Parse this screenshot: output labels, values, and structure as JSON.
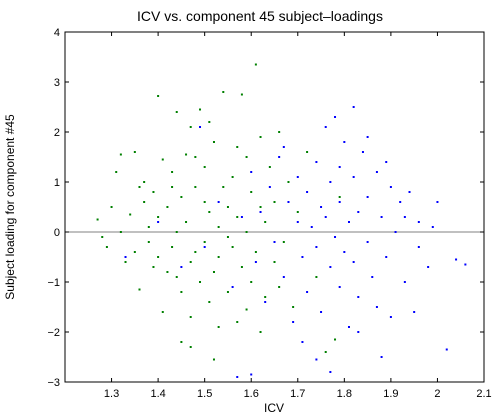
{
  "chart_data": {
    "type": "scatter",
    "title": "ICV vs. component 45 subject–loadings",
    "xlabel": "ICV",
    "ylabel": "Subject loading for component #45",
    "xlim": [
      1.2,
      2.1
    ],
    "ylim": [
      -3,
      4
    ],
    "xticks": [
      "1.3",
      "1.4",
      "1.5",
      "1.6",
      "1.7",
      "1.8",
      "1.9",
      "2",
      "2.1"
    ],
    "yticks": [
      "−3",
      "−2",
      "−1",
      "0",
      "1",
      "2",
      "3",
      "4"
    ],
    "reference_line_y": 0,
    "grid": false,
    "legend": "none",
    "series": [
      {
        "color": "#008000",
        "points": [
          [
            1.27,
            0.25
          ],
          [
            1.28,
            -0.1
          ],
          [
            1.29,
            -0.3
          ],
          [
            1.3,
            0.5
          ],
          [
            1.31,
            1.2
          ],
          [
            1.32,
            1.55
          ],
          [
            1.32,
            0.0
          ],
          [
            1.33,
            -0.6
          ],
          [
            1.34,
            0.35
          ],
          [
            1.35,
            1.6
          ],
          [
            1.35,
            -0.4
          ],
          [
            1.36,
            0.9
          ],
          [
            1.36,
            -1.15
          ],
          [
            1.37,
            0.6
          ],
          [
            1.37,
            1.0
          ],
          [
            1.38,
            -0.2
          ],
          [
            1.38,
            0.1
          ],
          [
            1.39,
            0.8
          ],
          [
            1.4,
            2.72
          ],
          [
            1.4,
            -0.5
          ],
          [
            1.4,
            0.3
          ],
          [
            1.41,
            1.45
          ],
          [
            1.41,
            -1.6
          ],
          [
            1.42,
            0.5
          ],
          [
            1.42,
            -0.8
          ],
          [
            1.43,
            1.2
          ],
          [
            1.43,
            -0.3
          ],
          [
            1.44,
            2.4
          ],
          [
            1.44,
            0.0
          ],
          [
            1.45,
            0.7
          ],
          [
            1.45,
            -1.2
          ],
          [
            1.45,
            -2.2
          ],
          [
            1.46,
            1.55
          ],
          [
            1.46,
            0.2
          ],
          [
            1.47,
            -0.6
          ],
          [
            1.47,
            -1.7
          ],
          [
            1.47,
            2.1
          ],
          [
            1.48,
            0.9
          ],
          [
            1.48,
            -0.4
          ],
          [
            1.49,
            2.45
          ],
          [
            1.49,
            -1.0
          ],
          [
            1.5,
            0.6
          ],
          [
            1.5,
            -0.2
          ],
          [
            1.5,
            1.3
          ],
          [
            1.51,
            -1.4
          ],
          [
            1.51,
            0.4
          ],
          [
            1.52,
            -0.8
          ],
          [
            1.52,
            1.8
          ],
          [
            1.52,
            -2.55
          ],
          [
            1.53,
            0.1
          ],
          [
            1.53,
            -0.5
          ],
          [
            1.54,
            0.9
          ],
          [
            1.54,
            2.8
          ],
          [
            1.55,
            -1.2
          ],
          [
            1.55,
            0.5
          ],
          [
            1.56,
            -0.3
          ],
          [
            1.56,
            1.1
          ],
          [
            1.57,
            -1.8
          ],
          [
            1.57,
            0.3
          ],
          [
            1.58,
            2.75
          ],
          [
            1.58,
            -0.7
          ],
          [
            1.59,
            1.5
          ],
          [
            1.59,
            0.0
          ],
          [
            1.6,
            -1.0
          ],
          [
            1.6,
            0.8
          ],
          [
            1.61,
            3.35
          ],
          [
            1.61,
            -0.4
          ],
          [
            1.62,
            1.9
          ],
          [
            1.62,
            -2.0
          ],
          [
            1.63,
            0.2
          ],
          [
            1.63,
            -1.3
          ],
          [
            1.64,
            1.3
          ],
          [
            1.65,
            -0.6
          ],
          [
            1.65,
            0.6
          ],
          [
            1.66,
            2.0
          ],
          [
            1.67,
            -0.2
          ],
          [
            1.68,
            1.0
          ],
          [
            1.69,
            -1.5
          ],
          [
            1.7,
            0.4
          ],
          [
            1.72,
            1.6
          ],
          [
            1.74,
            -0.9
          ],
          [
            1.76,
            -2.4
          ],
          [
            1.78,
            -2.15
          ],
          [
            1.79,
            0.7
          ],
          [
            1.44,
            -0.9
          ],
          [
            1.48,
            1.5
          ],
          [
            1.53,
            -1.9
          ],
          [
            1.57,
            1.7
          ],
          [
            1.62,
            0.5
          ],
          [
            1.66,
            -1.1
          ],
          [
            1.39,
            -0.7
          ],
          [
            1.43,
            0.9
          ],
          [
            1.51,
            2.2
          ],
          [
            1.55,
            -0.1
          ],
          [
            1.59,
            -1.55
          ],
          [
            1.47,
            -2.3
          ]
        ]
      },
      {
        "color": "#0000ff",
        "points": [
          [
            1.33,
            -0.5
          ],
          [
            1.4,
            0.2
          ],
          [
            1.45,
            -0.7
          ],
          [
            1.49,
            2.1
          ],
          [
            1.5,
            -0.3
          ],
          [
            1.53,
            0.6
          ],
          [
            1.56,
            -1.1
          ],
          [
            1.58,
            0.3
          ],
          [
            1.6,
            1.2
          ],
          [
            1.61,
            -0.6
          ],
          [
            1.62,
            0.4
          ],
          [
            1.63,
            -1.4
          ],
          [
            1.64,
            0.9
          ],
          [
            1.65,
            -0.2
          ],
          [
            1.66,
            1.5
          ],
          [
            1.67,
            -0.9
          ],
          [
            1.68,
            0.6
          ],
          [
            1.69,
            -1.8
          ],
          [
            1.7,
            0.2
          ],
          [
            1.7,
            1.1
          ],
          [
            1.71,
            -0.5
          ],
          [
            1.72,
            0.8
          ],
          [
            1.72,
            -1.2
          ],
          [
            1.73,
            0.1
          ],
          [
            1.74,
            1.4
          ],
          [
            1.74,
            -0.3
          ],
          [
            1.75,
            0.5
          ],
          [
            1.75,
            -1.6
          ],
          [
            1.76,
            2.1
          ],
          [
            1.76,
            0.3
          ],
          [
            1.77,
            -0.7
          ],
          [
            1.77,
            1.0
          ],
          [
            1.78,
            -0.1
          ],
          [
            1.78,
            2.3
          ],
          [
            1.79,
            -1.1
          ],
          [
            1.79,
            0.6
          ],
          [
            1.8,
            1.8
          ],
          [
            1.8,
            -0.4
          ],
          [
            1.81,
            0.2
          ],
          [
            1.81,
            -1.9
          ],
          [
            1.82,
            1.1
          ],
          [
            1.82,
            -0.6
          ],
          [
            1.83,
            0.4
          ],
          [
            1.83,
            -1.3
          ],
          [
            1.84,
            1.6
          ],
          [
            1.85,
            -0.2
          ],
          [
            1.85,
            0.7
          ],
          [
            1.86,
            -0.9
          ],
          [
            1.87,
            1.2
          ],
          [
            1.87,
            -1.5
          ],
          [
            1.88,
            0.3
          ],
          [
            1.89,
            -0.5
          ],
          [
            1.9,
            0.9
          ],
          [
            1.9,
            -1.7
          ],
          [
            1.91,
            0.0
          ],
          [
            1.92,
            0.6
          ],
          [
            1.93,
            -1.0
          ],
          [
            1.94,
            0.8
          ],
          [
            1.95,
            -1.6
          ],
          [
            1.96,
            0.2
          ],
          [
            1.98,
            -0.7
          ],
          [
            2.0,
            0.6
          ],
          [
            2.02,
            -2.35
          ],
          [
            2.04,
            -0.55
          ],
          [
            2.06,
            -0.65
          ],
          [
            1.57,
            -2.9
          ],
          [
            1.6,
            -2.85
          ],
          [
            1.74,
            -2.55
          ],
          [
            1.77,
            -2.8
          ],
          [
            1.82,
            2.5
          ],
          [
            1.85,
            1.9
          ],
          [
            1.88,
            -2.5
          ],
          [
            1.67,
            1.7
          ],
          [
            1.71,
            -2.2
          ],
          [
            1.79,
            1.3
          ],
          [
            1.83,
            -2.0
          ],
          [
            1.89,
            1.4
          ],
          [
            1.93,
            0.3
          ],
          [
            1.96,
            -0.3
          ],
          [
            1.99,
            0.1
          ]
        ]
      }
    ]
  }
}
